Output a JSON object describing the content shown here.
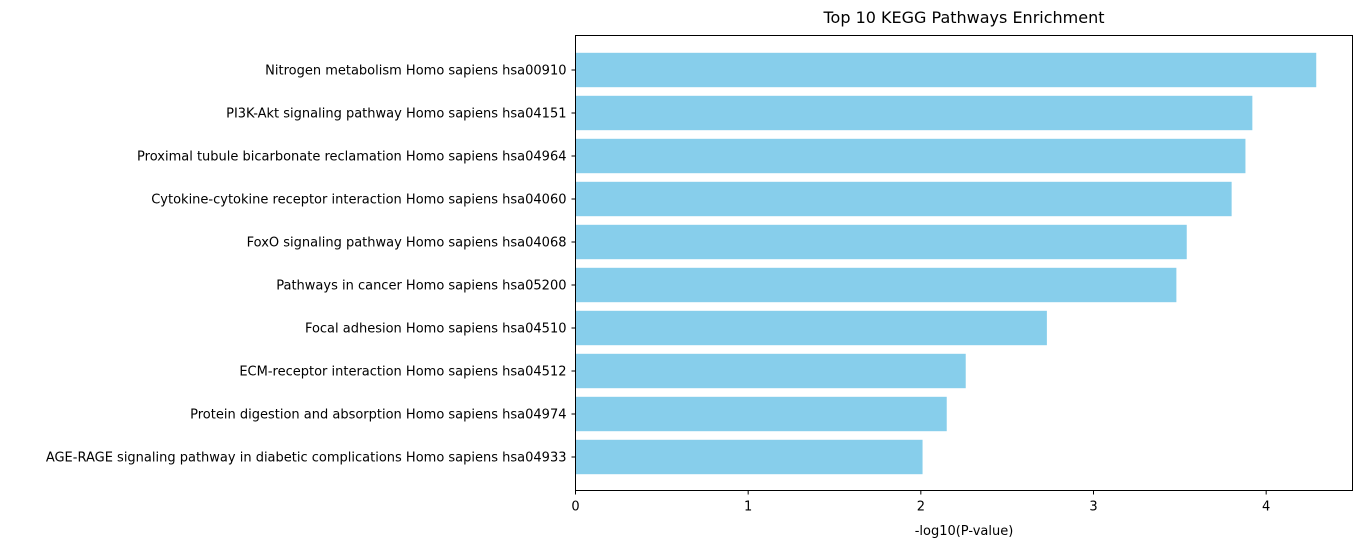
{
  "chart_data": {
    "type": "bar",
    "orientation": "horizontal",
    "title": "Top 10 KEGG Pathways Enrichment",
    "xlabel": "-log10(P-value)",
    "ylabel": "",
    "xlim": [
      0,
      4.5
    ],
    "xticks": [
      "0",
      "1",
      "2",
      "3",
      "4"
    ],
    "grid": false,
    "bar_color": "#87ceeb",
    "categories": [
      "Nitrogen metabolism Homo sapiens hsa00910",
      "PI3K-Akt signaling pathway Homo sapiens hsa04151",
      "Proximal tubule bicarbonate reclamation Homo sapiens hsa04964",
      "Cytokine-cytokine receptor interaction Homo sapiens hsa04060",
      "FoxO signaling pathway Homo sapiens hsa04068",
      "Pathways in cancer Homo sapiens hsa05200",
      "Focal adhesion Homo sapiens hsa04510",
      "ECM-receptor interaction Homo sapiens hsa04512",
      "Protein digestion and absorption Homo sapiens hsa04974",
      "AGE-RAGE signaling pathway in diabetic complications Homo sapiens hsa04933"
    ],
    "values": [
      4.29,
      3.92,
      3.88,
      3.8,
      3.54,
      3.48,
      2.73,
      2.26,
      2.15,
      2.01
    ]
  }
}
